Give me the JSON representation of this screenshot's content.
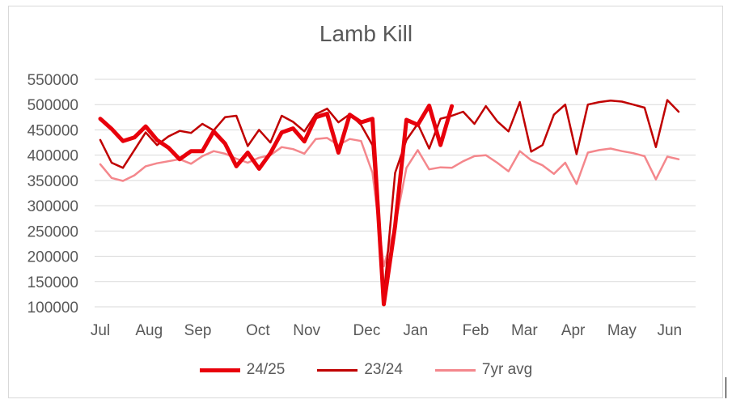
{
  "chart_data": {
    "type": "line",
    "title": "Lamb Kill",
    "xlabel": "",
    "ylabel": "",
    "ylim": [
      100000,
      550000
    ],
    "yticks": [
      100000,
      150000,
      200000,
      250000,
      300000,
      350000,
      400000,
      450000,
      500000,
      550000
    ],
    "ytick_labels": [
      "100000",
      "150000",
      "200000",
      "250000",
      "300000",
      "350000",
      "400000",
      "450000",
      "500000",
      "550000"
    ],
    "x_count": 53,
    "month_labels": [
      {
        "label": "Jul",
        "x": 0
      },
      {
        "label": "Aug",
        "x": 4.3
      },
      {
        "label": "Sep",
        "x": 8.6
      },
      {
        "label": "Oct",
        "x": 13.9
      },
      {
        "label": "Nov",
        "x": 18.2
      },
      {
        "label": "Dec",
        "x": 23.5
      },
      {
        "label": "Jan",
        "x": 27.8
      },
      {
        "label": "Feb",
        "x": 33.1
      },
      {
        "label": "Mar",
        "x": 37.4
      },
      {
        "label": "Apr",
        "x": 41.7
      },
      {
        "label": "May",
        "x": 46.0
      },
      {
        "label": "Jun",
        "x": 50.2
      }
    ],
    "grid": true,
    "legend": "bottom",
    "series": [
      {
        "name": "24/25",
        "color": "#e8000b",
        "width": 5,
        "values": [
          472000,
          452000,
          428000,
          435000,
          457000,
          430000,
          415000,
          392000,
          408000,
          408000,
          447000,
          423000,
          378000,
          405000,
          373000,
          404000,
          445000,
          453000,
          427000,
          475000,
          482000,
          405000,
          480000,
          465000,
          472000,
          105000,
          260000,
          470000,
          460000,
          498000,
          420000,
          497000
        ]
      },
      {
        "name": "23/24",
        "color": "#c00000",
        "width": 2.5,
        "values": [
          430000,
          385000,
          375000,
          410000,
          445000,
          420000,
          437000,
          448000,
          444000,
          462000,
          449000,
          475000,
          478000,
          418000,
          450000,
          425000,
          478000,
          466000,
          447000,
          481000,
          492000,
          465000,
          481000,
          460000,
          420000,
          120000,
          365000,
          430000,
          462000,
          413000,
          472000,
          478000,
          486000,
          462000,
          497000,
          467000,
          447000,
          505000,
          407000,
          420000,
          480000,
          500000,
          402000,
          500000,
          505000,
          508000,
          506000,
          500000,
          494000,
          416000,
          509000,
          486000
        ]
      },
      {
        "name": "7yr avg",
        "color": "#f4878c",
        "width": 2.5,
        "values": [
          382000,
          355000,
          349000,
          360000,
          378000,
          384000,
          388000,
          392000,
          383000,
          398000,
          408000,
          403000,
          393000,
          385000,
          395000,
          400000,
          416000,
          412000,
          403000,
          432000,
          434000,
          420000,
          432000,
          428000,
          365000,
          180000,
          260000,
          375000,
          410000,
          372000,
          376000,
          375000,
          388000,
          398000,
          400000,
          385000,
          368000,
          408000,
          390000,
          380000,
          363000,
          385000,
          343000,
          405000,
          410000,
          413000,
          408000,
          404000,
          398000,
          352000,
          397000,
          392000
        ]
      }
    ]
  }
}
